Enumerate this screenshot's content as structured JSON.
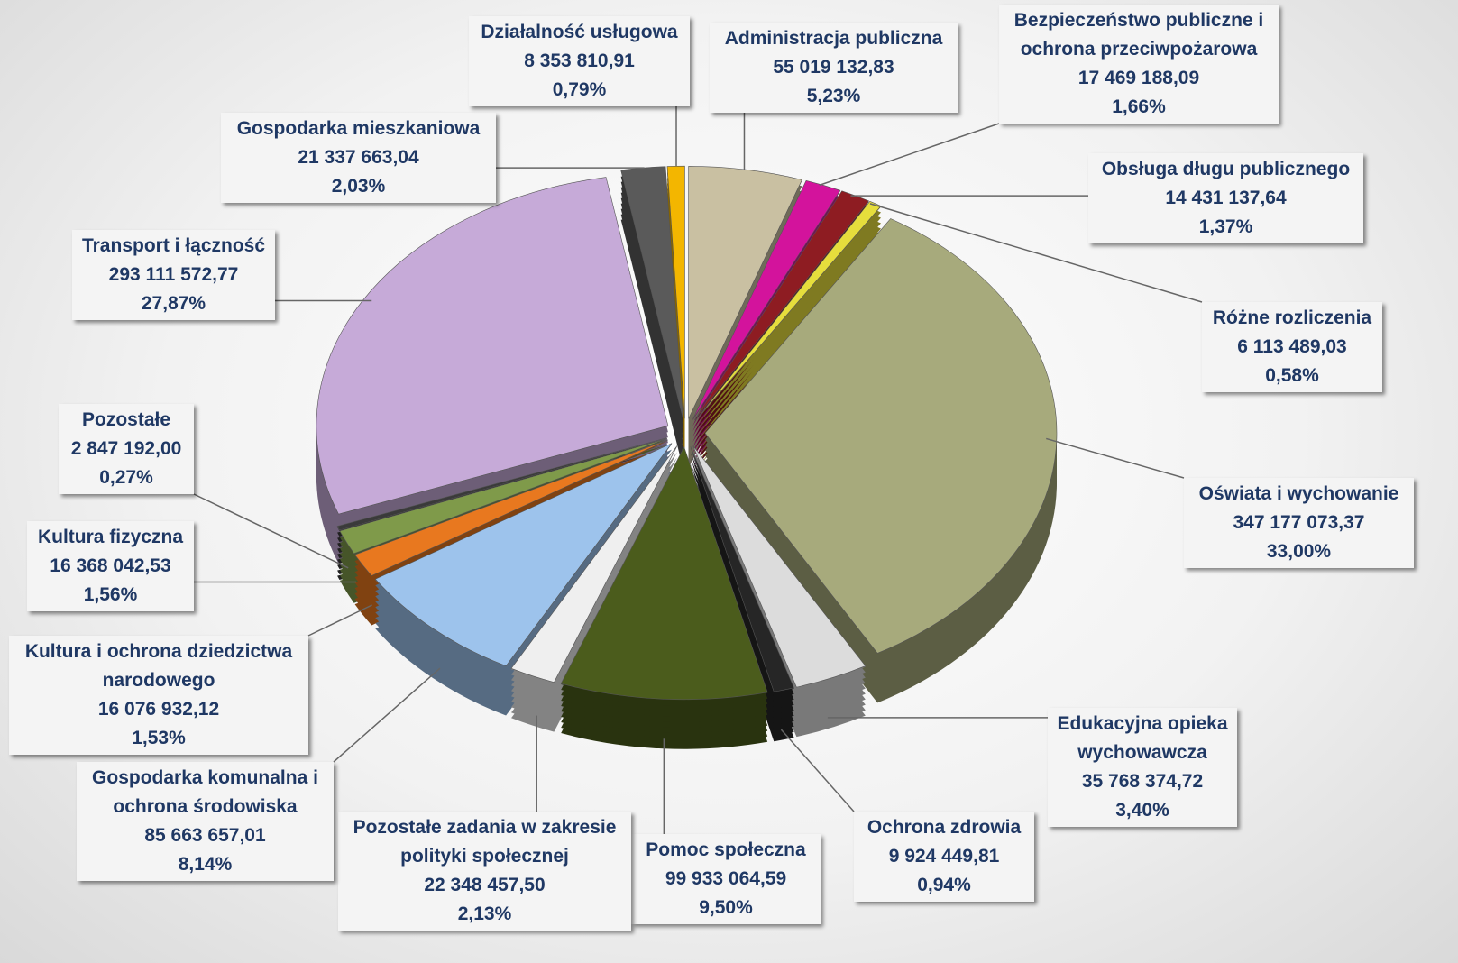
{
  "chart_data": {
    "type": "pie",
    "categories": [
      "Administracja publiczna",
      "Bezpieczeństwo publiczne i ochrona przeciwpożarowa",
      "Obsługa długu publicznego",
      "Różne rozliczenia",
      "Oświata i wychowanie",
      "Edukacyjna opieka wychowawcza",
      "Ochrona zdrowia",
      "Pomoc społeczna",
      "Pozostałe zadania w zakresie polityki społecznej",
      "Gospodarka komunalna i ochrona środowiska",
      "Kultura i ochrona dziedzictwa narodowego",
      "Kultura fizyczna",
      "Pozostałe",
      "Transport i łączność",
      "Gospodarka mieszkaniowa",
      "Działalność usługowa"
    ],
    "values": [
      55019132.83,
      17469188.09,
      14431137.64,
      6113489.03,
      347177073.37,
      35768374.72,
      9924449.81,
      99933064.59,
      22348457.5,
      85663657.01,
      16076932.12,
      16368042.53,
      2847192.0,
      293111572.77,
      21337663.04,
      8353810.91
    ],
    "value_labels": [
      "55 019 132,83",
      "17 469 188,09",
      "14 431 137,64",
      "6 113 489,03",
      "347 177 073,37",
      "35 768 374,72",
      "9 924 449,81",
      "99 933 064,59",
      "22 348 457,50",
      "85 663 657,01",
      "16 076 932,12",
      "16 368 042,53",
      "2 847 192,00",
      "293 111 572,77",
      "21 337 663,04",
      "8 353 810,91"
    ],
    "percentages": [
      5.23,
      1.66,
      1.37,
      0.58,
      33.0,
      3.4,
      0.94,
      9.5,
      2.13,
      8.14,
      1.53,
      1.56,
      0.27,
      27.87,
      2.03,
      0.79
    ],
    "percentage_labels": [
      "5,23%",
      "1,66%",
      "1,37%",
      "0,58%",
      "33,00%",
      "3,40%",
      "0,94%",
      "9,50%",
      "2,13%",
      "8,14%",
      "1,53%",
      "1,56%",
      "0,27%",
      "27,87%",
      "2,03%",
      "0,79%"
    ],
    "colors": [
      "#c9c0a2",
      "#d3139c",
      "#8e1c22",
      "#e6de3c",
      "#a7aa7c",
      "#dcdcdc",
      "#262626",
      "#4b5c1c",
      "#efefef",
      "#9dc3ec",
      "#e8781f",
      "#7f9a4a",
      "#3a3a3a",
      "#c6aad8",
      "#5a5a5a",
      "#f3b600"
    ]
  }
}
